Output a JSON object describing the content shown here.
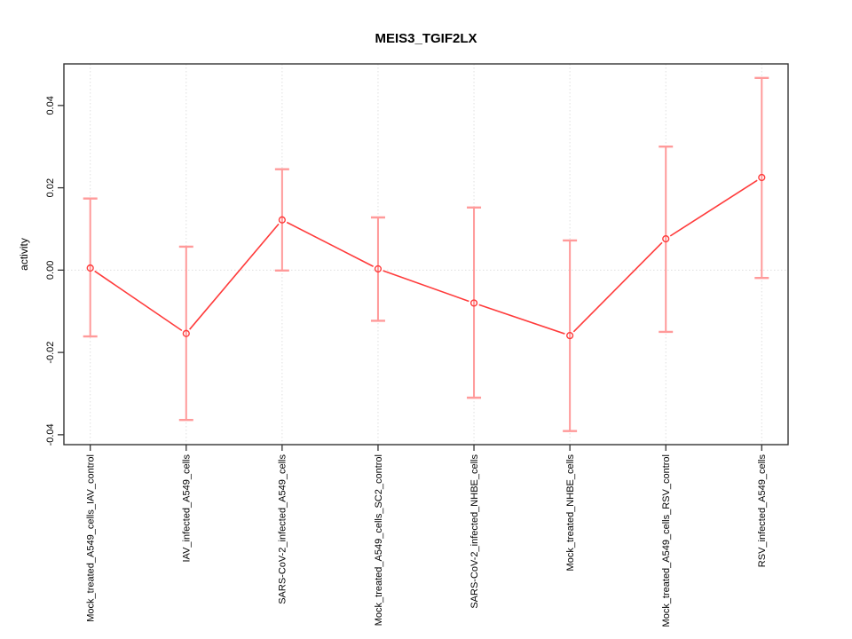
{
  "chart_data": {
    "type": "line",
    "title": "MEIS3_TGIF2LX",
    "ylabel": "activity",
    "xlabel": "",
    "marker": "open-circle",
    "line_style": "points-and-segments-with-gaps",
    "legend": "none",
    "categories": [
      "Mock_treated_A549_cells_IAV_control",
      "IAV_infected_A549_cells",
      "SARS-CoV-2_infected_A549_cells",
      "Mock_treated_A549_cells_SC2_control",
      "SARS-CoV-2_infected_NHBE_cells",
      "Mock_treated_NHBE_cells",
      "Mock_treated_A549_cells_RSV_control",
      "RSV_infected_A549_cells"
    ],
    "values": [
      0.0005,
      -0.0154,
      0.0122,
      0.0003,
      -0.008,
      -0.0159,
      0.0076,
      0.0225
    ],
    "error_high": [
      0.0174,
      0.0057,
      0.0245,
      0.0128,
      0.0152,
      0.0072,
      0.03,
      0.0467
    ],
    "error_low": [
      -0.0161,
      -0.0364,
      -0.0001,
      -0.0123,
      -0.031,
      -0.0391,
      -0.015,
      -0.0019
    ],
    "ylim": [
      -0.0424,
      0.0501
    ],
    "yticks": [
      -0.04,
      -0.02,
      0,
      0.02,
      0.04
    ],
    "ytick_labels": [
      "-0.04",
      "-0.02",
      "0.00",
      "0.02",
      "0.04"
    ],
    "grid": {
      "vertical_dotted_at_each_category": true,
      "horizontal_dotted_zero_line": true
    },
    "colors": {
      "series_line": "#ff3b3b",
      "point_stroke": "#ff3b3b",
      "error_bar": "#ff9a9a",
      "grid_line": "#dfdfdf",
      "axis_box": "#333333",
      "text": "#000000"
    }
  }
}
